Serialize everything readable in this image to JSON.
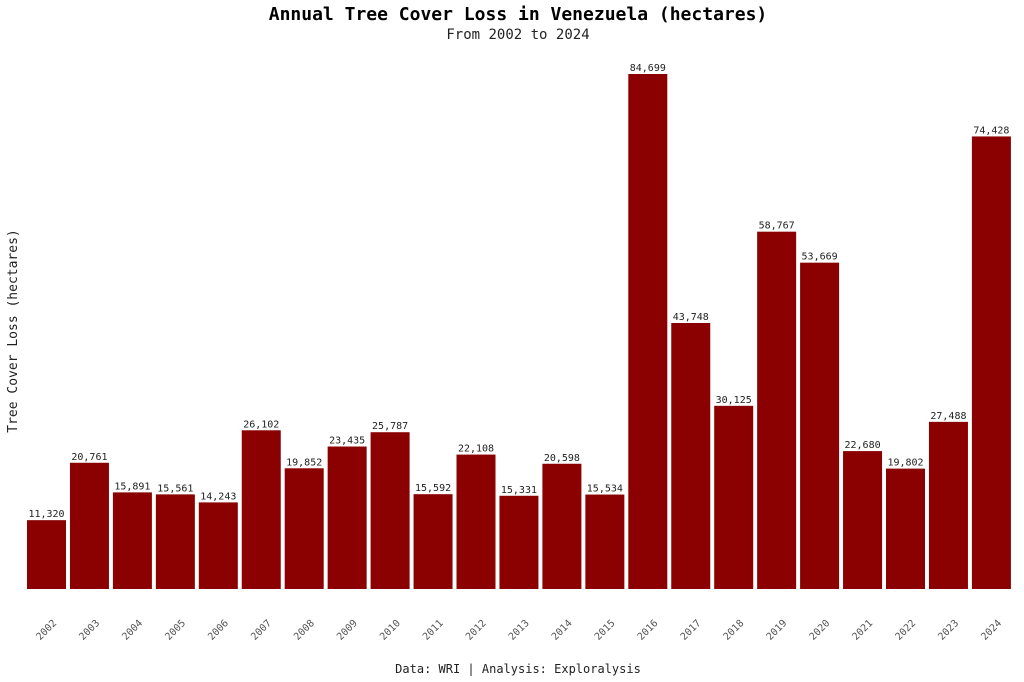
{
  "chart_data": {
    "type": "bar",
    "title": "Annual Tree Cover Loss in Venezuela (hectares)",
    "subtitle": "From 2002 to 2024",
    "xlabel": "",
    "ylabel": "Tree Cover Loss (hectares)",
    "caption": "Data: WRI | Analysis: Exploralysis",
    "categories": [
      "2002",
      "2003",
      "2004",
      "2005",
      "2006",
      "2007",
      "2008",
      "2009",
      "2010",
      "2011",
      "2012",
      "2013",
      "2014",
      "2015",
      "2016",
      "2017",
      "2018",
      "2019",
      "2020",
      "2021",
      "2022",
      "2023",
      "2024"
    ],
    "values": [
      11320,
      20761,
      15891,
      15561,
      14243,
      26102,
      19852,
      23435,
      25787,
      15592,
      22108,
      15331,
      20598,
      15534,
      84699,
      43748,
      30125,
      58767,
      53669,
      22680,
      19802,
      27488,
      74428
    ],
    "value_labels": [
      "11,320",
      "20,761",
      "15,891",
      "15,561",
      "14,243",
      "26,102",
      "19,852",
      "23,435",
      "25,787",
      "15,592",
      "22,108",
      "15,331",
      "20,598",
      "15,534",
      "84,699",
      "43,748",
      "30,125",
      "58,767",
      "53,669",
      "22,680",
      "19,802",
      "27,488",
      "74,428"
    ],
    "ylim": [
      0,
      84699
    ],
    "grid": false,
    "legend": "none",
    "colors": {
      "bar": "#8b0000"
    }
  }
}
